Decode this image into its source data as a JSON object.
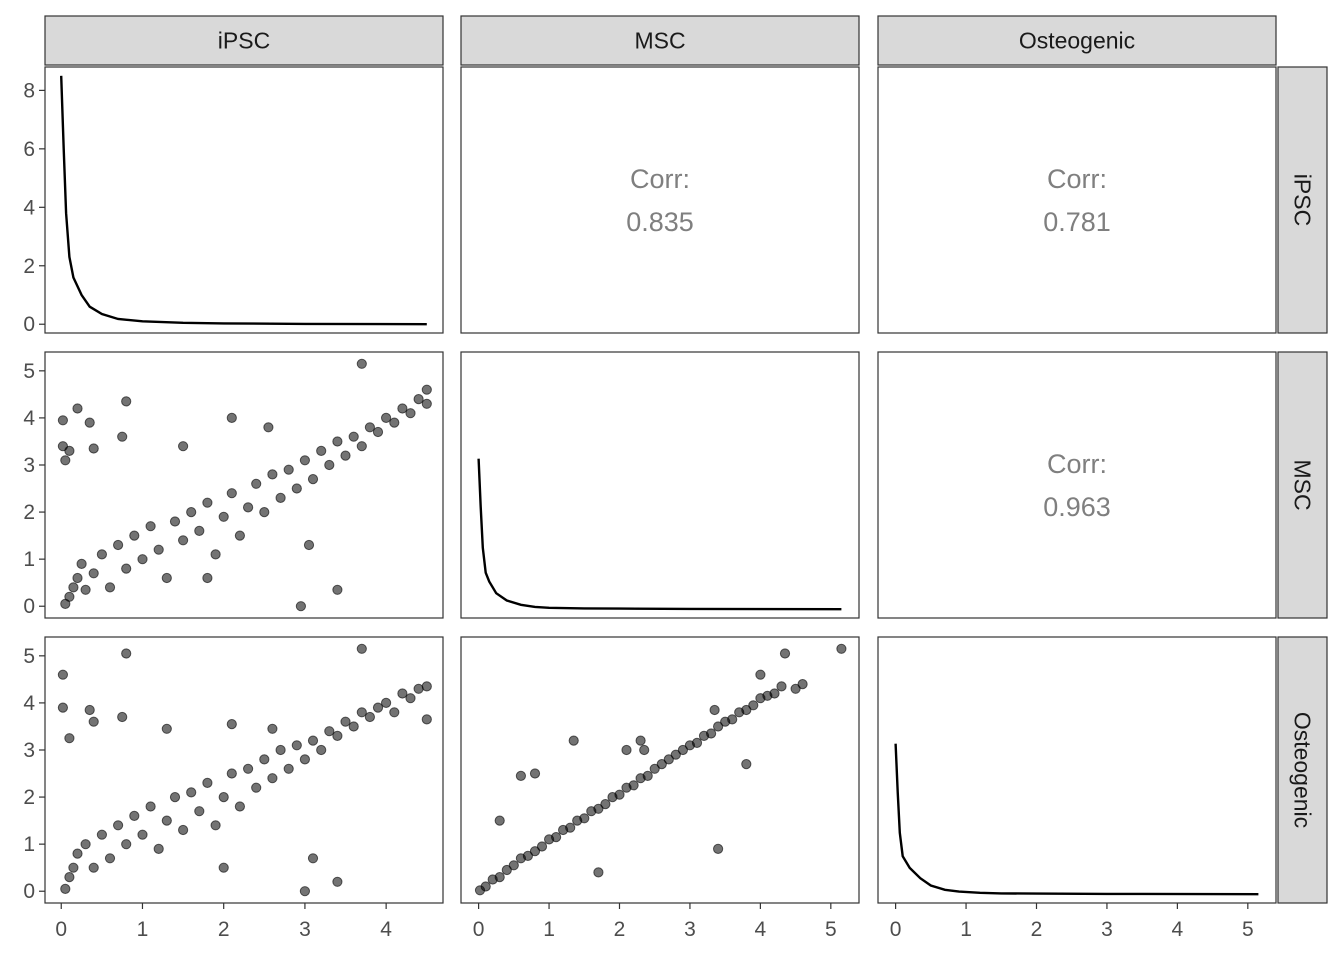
{
  "chart_data": {
    "type": "scatter",
    "variables": [
      "iPSC",
      "MSC",
      "Osteogenic"
    ],
    "column_strips": [
      "iPSC",
      "MSC",
      "Osteogenic"
    ],
    "row_strips": [
      "iPSC",
      "MSC",
      "Osteogenic"
    ],
    "axes": {
      "iPSC": {
        "range": [
          -0.2,
          4.7
        ],
        "ticks": [
          0,
          1,
          2,
          3,
          4
        ],
        "tick_labels": [
          "0",
          "1",
          "2",
          "3",
          "4"
        ]
      },
      "MSC": {
        "range": [
          -0.25,
          5.4
        ],
        "ticks": [
          0,
          1,
          2,
          3,
          4,
          5
        ],
        "tick_labels": [
          "0",
          "1",
          "2",
          "3",
          "4",
          "5"
        ]
      },
      "Osteogenic": {
        "range": [
          -0.25,
          5.4
        ],
        "ticks": [
          0,
          1,
          2,
          3,
          4,
          5
        ],
        "tick_labels": [
          "0",
          "1",
          "2",
          "3",
          "4",
          "5"
        ]
      }
    },
    "density_axis": {
      "range": [
        -0.3,
        8.8
      ],
      "ticks": [
        0,
        2,
        4,
        6,
        8
      ],
      "tick_labels": [
        "0",
        "2",
        "4",
        "6",
        "8"
      ]
    },
    "correlations": [
      {
        "label": "Corr:",
        "value": "0.835",
        "row": "iPSC",
        "col": "MSC"
      },
      {
        "label": "Corr:",
        "value": "0.781",
        "row": "iPSC",
        "col": "Osteogenic"
      },
      {
        "label": "Corr:",
        "value": "0.963",
        "row": "MSC",
        "col": "Osteogenic"
      }
    ],
    "densities": {
      "iPSC": [
        [
          0,
          8.5
        ],
        [
          0.03,
          6.0
        ],
        [
          0.06,
          3.8
        ],
        [
          0.1,
          2.3
        ],
        [
          0.15,
          1.6
        ],
        [
          0.25,
          1.0
        ],
        [
          0.35,
          0.6
        ],
        [
          0.5,
          0.35
        ],
        [
          0.7,
          0.18
        ],
        [
          1.0,
          0.1
        ],
        [
          1.5,
          0.05
        ],
        [
          2.0,
          0.03
        ],
        [
          3.0,
          0.01
        ],
        [
          4.5,
          0.0
        ]
      ],
      "MSC": [
        [
          0,
          5.15
        ],
        [
          0.03,
          3.5
        ],
        [
          0.06,
          2.1
        ],
        [
          0.1,
          1.25
        ],
        [
          0.15,
          0.95
        ],
        [
          0.25,
          0.55
        ],
        [
          0.4,
          0.3
        ],
        [
          0.6,
          0.15
        ],
        [
          0.8,
          0.08
        ],
        [
          1.0,
          0.05
        ],
        [
          1.5,
          0.03
        ],
        [
          2.0,
          0.02
        ],
        [
          3.0,
          0.01
        ],
        [
          5.15,
          0.0
        ]
      ],
      "Osteogenic": [
        [
          0,
          5.15
        ],
        [
          0.03,
          3.5
        ],
        [
          0.06,
          2.1
        ],
        [
          0.1,
          1.3
        ],
        [
          0.2,
          0.9
        ],
        [
          0.35,
          0.55
        ],
        [
          0.5,
          0.3
        ],
        [
          0.7,
          0.15
        ],
        [
          0.9,
          0.09
        ],
        [
          1.2,
          0.05
        ],
        [
          1.5,
          0.03
        ],
        [
          2.0,
          0.02
        ],
        [
          3.0,
          0.01
        ],
        [
          5.15,
          0.0
        ]
      ]
    },
    "scatter": [
      {
        "x_var": "iPSC",
        "y_var": "MSC",
        "points": [
          [
            0.05,
            0.05
          ],
          [
            0.1,
            0.2
          ],
          [
            0.15,
            0.4
          ],
          [
            0.2,
            0.6
          ],
          [
            0.25,
            0.9
          ],
          [
            0.3,
            0.35
          ],
          [
            0.4,
            0.7
          ],
          [
            0.5,
            1.1
          ],
          [
            0.6,
            0.4
          ],
          [
            0.7,
            1.3
          ],
          [
            0.8,
            0.8
          ],
          [
            0.9,
            1.5
          ],
          [
            1.0,
            1.0
          ],
          [
            1.1,
            1.7
          ],
          [
            1.2,
            1.2
          ],
          [
            1.3,
            0.6
          ],
          [
            1.4,
            1.8
          ],
          [
            1.5,
            1.4
          ],
          [
            1.6,
            2.0
          ],
          [
            1.7,
            1.6
          ],
          [
            1.8,
            2.2
          ],
          [
            1.9,
            1.1
          ],
          [
            2.0,
            1.9
          ],
          [
            2.1,
            2.4
          ],
          [
            2.2,
            1.5
          ],
          [
            2.3,
            2.1
          ],
          [
            2.4,
            2.6
          ],
          [
            2.5,
            2.0
          ],
          [
            2.6,
            2.8
          ],
          [
            2.7,
            2.3
          ],
          [
            2.8,
            2.9
          ],
          [
            2.9,
            2.5
          ],
          [
            3.0,
            3.1
          ],
          [
            3.1,
            2.7
          ],
          [
            3.2,
            3.3
          ],
          [
            3.3,
            3.0
          ],
          [
            3.4,
            3.5
          ],
          [
            3.5,
            3.2
          ],
          [
            3.6,
            3.6
          ],
          [
            3.7,
            3.4
          ],
          [
            3.8,
            3.8
          ],
          [
            3.9,
            3.7
          ],
          [
            4.0,
            4.0
          ],
          [
            4.1,
            3.9
          ],
          [
            4.2,
            4.2
          ],
          [
            4.3,
            4.1
          ],
          [
            4.4,
            4.4
          ],
          [
            4.5,
            4.6
          ],
          [
            4.5,
            4.3
          ],
          [
            3.7,
            5.15
          ],
          [
            0.02,
            3.95
          ],
          [
            0.02,
            3.4
          ],
          [
            0.2,
            4.2
          ],
          [
            0.8,
            4.35
          ],
          [
            0.75,
            3.6
          ],
          [
            1.5,
            3.4
          ],
          [
            2.1,
            4.0
          ],
          [
            2.55,
            3.8
          ],
          [
            3.05,
            1.3
          ],
          [
            3.4,
            0.35
          ],
          [
            2.95,
            0.0
          ],
          [
            1.8,
            0.6
          ],
          [
            0.4,
            3.35
          ],
          [
            0.35,
            3.9
          ],
          [
            0.1,
            3.3
          ],
          [
            0.05,
            3.1
          ]
        ]
      },
      {
        "x_var": "iPSC",
        "y_var": "Osteogenic",
        "points": [
          [
            0.05,
            0.05
          ],
          [
            0.1,
            0.3
          ],
          [
            0.15,
            0.5
          ],
          [
            0.2,
            0.8
          ],
          [
            0.3,
            1.0
          ],
          [
            0.4,
            0.5
          ],
          [
            0.5,
            1.2
          ],
          [
            0.6,
            0.7
          ],
          [
            0.7,
            1.4
          ],
          [
            0.8,
            1.0
          ],
          [
            0.9,
            1.6
          ],
          [
            1.0,
            1.2
          ],
          [
            1.1,
            1.8
          ],
          [
            1.2,
            0.9
          ],
          [
            1.3,
            1.5
          ],
          [
            1.4,
            2.0
          ],
          [
            1.5,
            1.3
          ],
          [
            1.6,
            2.1
          ],
          [
            1.7,
            1.7
          ],
          [
            1.8,
            2.3
          ],
          [
            1.9,
            1.4
          ],
          [
            2.0,
            2.0
          ],
          [
            2.1,
            2.5
          ],
          [
            2.2,
            1.8
          ],
          [
            2.3,
            2.6
          ],
          [
            2.4,
            2.2
          ],
          [
            2.5,
            2.8
          ],
          [
            2.6,
            2.4
          ],
          [
            2.7,
            3.0
          ],
          [
            2.8,
            2.6
          ],
          [
            2.9,
            3.1
          ],
          [
            3.0,
            2.8
          ],
          [
            3.1,
            3.2
          ],
          [
            3.2,
            3.0
          ],
          [
            3.3,
            3.4
          ],
          [
            3.4,
            3.3
          ],
          [
            3.5,
            3.6
          ],
          [
            3.6,
            3.5
          ],
          [
            3.7,
            3.8
          ],
          [
            3.8,
            3.7
          ],
          [
            3.9,
            3.9
          ],
          [
            4.0,
            4.0
          ],
          [
            4.1,
            3.8
          ],
          [
            4.2,
            4.2
          ],
          [
            4.3,
            4.1
          ],
          [
            4.4,
            4.3
          ],
          [
            4.5,
            4.35
          ],
          [
            4.5,
            3.65
          ],
          [
            3.7,
            5.15
          ],
          [
            0.02,
            4.6
          ],
          [
            0.02,
            3.9
          ],
          [
            0.8,
            5.05
          ],
          [
            0.75,
            3.7
          ],
          [
            1.3,
            3.45
          ],
          [
            2.1,
            3.55
          ],
          [
            2.6,
            3.45
          ],
          [
            3.0,
            0.0
          ],
          [
            3.4,
            0.2
          ],
          [
            3.1,
            0.7
          ],
          [
            0.35,
            3.85
          ],
          [
            0.4,
            3.6
          ],
          [
            0.1,
            3.25
          ],
          [
            2.0,
            0.5
          ]
        ]
      },
      {
        "x_var": "MSC",
        "y_var": "Osteogenic",
        "points": [
          [
            0.02,
            0.02
          ],
          [
            0.1,
            0.1
          ],
          [
            0.2,
            0.25
          ],
          [
            0.3,
            0.3
          ],
          [
            0.4,
            0.45
          ],
          [
            0.5,
            0.55
          ],
          [
            0.6,
            0.7
          ],
          [
            0.7,
            0.75
          ],
          [
            0.8,
            0.85
          ],
          [
            0.9,
            0.95
          ],
          [
            1.0,
            1.1
          ],
          [
            1.1,
            1.15
          ],
          [
            1.2,
            1.3
          ],
          [
            1.3,
            1.35
          ],
          [
            1.4,
            1.5
          ],
          [
            1.5,
            1.55
          ],
          [
            1.6,
            1.7
          ],
          [
            1.7,
            1.75
          ],
          [
            1.8,
            1.85
          ],
          [
            1.9,
            2.0
          ],
          [
            2.0,
            2.05
          ],
          [
            2.1,
            2.2
          ],
          [
            2.2,
            2.25
          ],
          [
            2.3,
            2.4
          ],
          [
            2.4,
            2.45
          ],
          [
            2.5,
            2.6
          ],
          [
            2.6,
            2.7
          ],
          [
            2.7,
            2.8
          ],
          [
            2.8,
            2.9
          ],
          [
            2.9,
            3.0
          ],
          [
            3.0,
            3.1
          ],
          [
            3.1,
            3.15
          ],
          [
            3.2,
            3.3
          ],
          [
            3.3,
            3.35
          ],
          [
            3.4,
            3.5
          ],
          [
            3.5,
            3.6
          ],
          [
            3.6,
            3.65
          ],
          [
            3.7,
            3.8
          ],
          [
            3.8,
            3.85
          ],
          [
            3.9,
            3.95
          ],
          [
            4.0,
            4.1
          ],
          [
            4.1,
            4.15
          ],
          [
            4.2,
            4.2
          ],
          [
            4.3,
            4.35
          ],
          [
            4.5,
            4.3
          ],
          [
            4.6,
            4.4
          ],
          [
            5.15,
            5.15
          ],
          [
            4.35,
            5.05
          ],
          [
            4.0,
            4.6
          ],
          [
            3.4,
            0.9
          ],
          [
            1.7,
            0.4
          ],
          [
            1.35,
            3.2
          ],
          [
            0.8,
            2.5
          ],
          [
            0.6,
            2.45
          ],
          [
            2.1,
            3.0
          ],
          [
            2.3,
            3.2
          ],
          [
            2.35,
            3.0
          ],
          [
            3.35,
            3.85
          ],
          [
            3.8,
            2.7
          ],
          [
            0.3,
            1.5
          ]
        ]
      }
    ]
  }
}
